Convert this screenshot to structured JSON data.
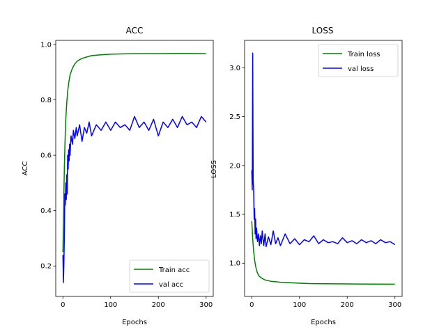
{
  "chart_data": [
    {
      "type": "line",
      "title": "ACC",
      "xlabel": "Epochs",
      "ylabel": "ACC",
      "xlim": [
        -15,
        315
      ],
      "ylim": [
        0.09,
        1.015
      ],
      "xticks": [
        0,
        100,
        200,
        300
      ],
      "yticks": [
        0.2,
        0.4,
        0.6,
        0.8,
        1.0
      ],
      "ytick_labels": [
        "0.2",
        "0.4",
        "0.6",
        "0.8",
        "1.0"
      ],
      "legend_position": "lower-right",
      "grid": false,
      "series": [
        {
          "name": "Train acc",
          "color": "#008000",
          "x": [
            0,
            1,
            2,
            3,
            4,
            5,
            6,
            8,
            10,
            12,
            15,
            20,
            25,
            30,
            40,
            50,
            60,
            80,
            100,
            120,
            150,
            200,
            250,
            300
          ],
          "y": [
            0.25,
            0.35,
            0.45,
            0.55,
            0.62,
            0.68,
            0.73,
            0.79,
            0.83,
            0.86,
            0.89,
            0.915,
            0.93,
            0.94,
            0.95,
            0.955,
            0.96,
            0.963,
            0.965,
            0.966,
            0.967,
            0.967,
            0.968,
            0.967
          ]
        },
        {
          "name": "val acc",
          "color": "#0000ff",
          "x": [
            0,
            1,
            2,
            3,
            4,
            5,
            6,
            7,
            8,
            9,
            10,
            11,
            12,
            13,
            14,
            15,
            17,
            20,
            22,
            25,
            28,
            30,
            35,
            40,
            45,
            50,
            55,
            60,
            70,
            80,
            90,
            100,
            110,
            120,
            130,
            140,
            150,
            160,
            170,
            180,
            190,
            200,
            210,
            220,
            230,
            240,
            250,
            260,
            270,
            280,
            290,
            300
          ],
          "y": [
            0.24,
            0.14,
            0.2,
            0.3,
            0.46,
            0.42,
            0.5,
            0.44,
            0.53,
            0.46,
            0.6,
            0.55,
            0.62,
            0.58,
            0.64,
            0.6,
            0.67,
            0.64,
            0.69,
            0.66,
            0.7,
            0.67,
            0.71,
            0.65,
            0.7,
            0.68,
            0.72,
            0.67,
            0.71,
            0.69,
            0.72,
            0.69,
            0.72,
            0.7,
            0.71,
            0.69,
            0.74,
            0.7,
            0.72,
            0.69,
            0.73,
            0.67,
            0.72,
            0.7,
            0.73,
            0.7,
            0.74,
            0.71,
            0.72,
            0.7,
            0.74,
            0.72
          ]
        }
      ]
    },
    {
      "type": "line",
      "title": "LOSS",
      "xlabel": "Epochs",
      "ylabel": "LOSS",
      "xlim": [
        -15,
        315
      ],
      "ylim": [
        0.66,
        3.28
      ],
      "xticks": [
        0,
        100,
        200,
        300
      ],
      "yticks": [
        1.0,
        1.5,
        2.0,
        2.5,
        3.0
      ],
      "ytick_labels": [
        "1.0",
        "1.5",
        "2.0",
        "2.5",
        "3.0"
      ],
      "legend_position": "upper-right",
      "grid": false,
      "series": [
        {
          "name": "Train loss",
          "color": "#008000",
          "x": [
            0,
            2,
            4,
            6,
            8,
            10,
            12,
            15,
            20,
            25,
            30,
            40,
            50,
            60,
            80,
            100,
            120,
            150,
            200,
            250,
            300
          ],
          "y": [
            1.43,
            1.25,
            1.12,
            1.03,
            0.97,
            0.93,
            0.9,
            0.87,
            0.85,
            0.835,
            0.825,
            0.815,
            0.81,
            0.805,
            0.8,
            0.795,
            0.792,
            0.79,
            0.788,
            0.786,
            0.785
          ]
        },
        {
          "name": "val loss",
          "color": "#0000ff",
          "x": [
            0,
            1,
            2,
            3,
            4,
            5,
            6,
            7,
            8,
            9,
            10,
            12,
            14,
            16,
            18,
            20,
            22,
            25,
            28,
            30,
            35,
            40,
            45,
            50,
            55,
            60,
            70,
            80,
            90,
            100,
            110,
            120,
            130,
            140,
            150,
            160,
            170,
            180,
            190,
            200,
            210,
            220,
            230,
            240,
            250,
            260,
            270,
            280,
            290,
            300
          ],
          "y": [
            1.95,
            1.75,
            3.15,
            1.85,
            1.75,
            1.45,
            1.56,
            1.3,
            1.45,
            1.25,
            1.36,
            1.22,
            1.3,
            1.18,
            1.28,
            1.2,
            1.33,
            1.18,
            1.3,
            1.17,
            1.27,
            1.19,
            1.33,
            1.2,
            1.26,
            1.18,
            1.3,
            1.2,
            1.25,
            1.19,
            1.24,
            1.22,
            1.28,
            1.2,
            1.24,
            1.21,
            1.22,
            1.2,
            1.26,
            1.21,
            1.23,
            1.2,
            1.24,
            1.21,
            1.23,
            1.2,
            1.24,
            1.21,
            1.22,
            1.19
          ]
        }
      ]
    }
  ]
}
